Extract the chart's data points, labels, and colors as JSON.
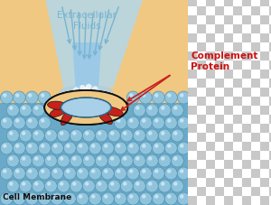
{
  "bg_color": "#f0c882",
  "membrane_bg_color": "#6aaac8",
  "sphere_color": "#90c4dc",
  "sphere_highlight": "#d0eaf8",
  "sphere_edge": "#4a8aaa",
  "fluid_color": "#b0d8f0",
  "fluid_inner_color": "#98c8e8",
  "arrow_color": "#78b4d0",
  "mac_beige": "#f0c882",
  "mac_red": "#c8201a",
  "mac_dark_outline": "#1a1a1a",
  "splash_white": "#e8f4ff",
  "text_extracellular": "Extracellular\nFluids",
  "text_complement": "Complement\nProtein",
  "text_membrane": "Cell Membrane",
  "text_fluid_color": "#78b4d0",
  "text_complement_color": "#cc1010",
  "text_membrane_color": "#111111",
  "fig_width": 3.0,
  "fig_height": 2.28,
  "dpi": 100,
  "checkerboard_size": 10
}
